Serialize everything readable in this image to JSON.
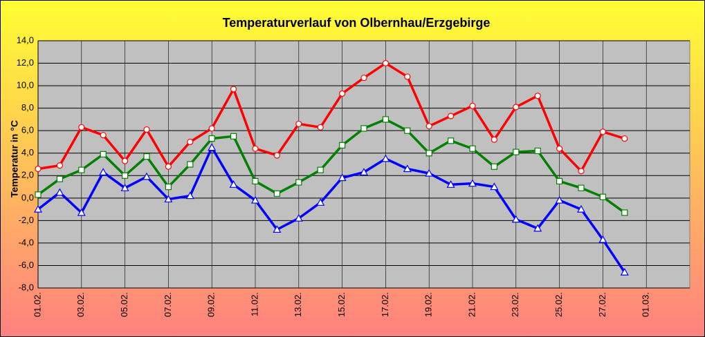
{
  "chart_data": {
    "type": "line",
    "title": "Temperaturverlauf von Olbernhau/Erzgebirge",
    "ylabel": "Temperatur in °C",
    "categories": [
      "01.02.",
      null,
      "03.02.",
      null,
      "05.02.",
      null,
      "07.02.",
      null,
      "09.02.",
      null,
      "11.02.",
      null,
      "13.02.",
      null,
      "15.02.",
      null,
      "17.02.",
      null,
      "19.02.",
      null,
      "21.02.",
      null,
      "23.02.",
      null,
      "25.02.",
      null,
      "27.02.",
      null,
      "01.03.",
      null,
      null
    ],
    "series": [
      {
        "color": "#ff0000",
        "marker": "circle",
        "values": [
          2.6,
          2.9,
          6.3,
          5.6,
          3.3,
          6.1,
          2.8,
          5.0,
          6.2,
          9.7,
          4.4,
          3.8,
          6.6,
          6.3,
          9.3,
          10.7,
          12.0,
          10.8,
          6.4,
          7.3,
          8.2,
          5.2,
          8.1,
          9.1,
          4.4,
          2.4,
          5.9,
          5.3,
          null,
          null,
          null
        ]
      },
      {
        "color": "#008000",
        "marker": "square",
        "values": [
          0.3,
          1.7,
          2.5,
          3.9,
          2.0,
          3.7,
          1.0,
          3.0,
          5.3,
          5.5,
          1.5,
          0.4,
          1.4,
          2.5,
          4.7,
          6.2,
          7.0,
          6.0,
          4.0,
          5.1,
          4.4,
          2.8,
          4.1,
          4.2,
          1.5,
          0.9,
          0.1,
          -1.3,
          null,
          null,
          null
        ]
      },
      {
        "color": "#0000ff",
        "marker": "triangle",
        "values": [
          -1.0,
          0.5,
          -1.3,
          2.3,
          0.9,
          1.9,
          -0.1,
          0.2,
          4.5,
          1.2,
          -0.2,
          -2.8,
          -1.8,
          -0.4,
          1.8,
          2.3,
          3.5,
          2.6,
          2.2,
          1.2,
          1.3,
          1.0,
          -1.9,
          -2.7,
          -0.2,
          -1.0,
          -3.7,
          -6.6,
          null,
          null,
          null
        ]
      }
    ],
    "ylim": [
      -8,
      14
    ],
    "yticks": [
      {
        "value": -8,
        "label": "-8,0"
      },
      {
        "value": -6,
        "label": "-6,0"
      },
      {
        "value": -4,
        "label": "-4,0"
      },
      {
        "value": -2,
        "label": "-2,0"
      },
      {
        "value": 0,
        "label": "0,0"
      },
      {
        "value": 2,
        "label": "2,0"
      },
      {
        "value": 4,
        "label": "4,0"
      },
      {
        "value": 6,
        "label": "6,0"
      },
      {
        "value": 8,
        "label": "8,0"
      },
      {
        "value": 10,
        "label": "10,0"
      },
      {
        "value": 12,
        "label": "12,0"
      },
      {
        "value": 14,
        "label": "14,0"
      }
    ],
    "grid": true
  }
}
